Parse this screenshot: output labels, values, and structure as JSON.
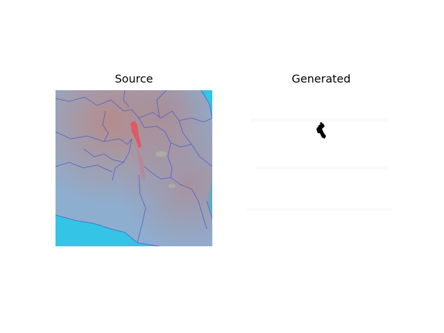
{
  "panels": {
    "source": {
      "title": "Source"
    },
    "generated": {
      "title": "Generated"
    }
  },
  "colors": {
    "background": "#ffffff",
    "sea": "#33c4e6",
    "land_base": "#8eaed0",
    "land_warm": "#b08a8e",
    "boundary": "#4f62c8",
    "plume_highlight": "#e8505c",
    "mask_background": "#ffffff",
    "mask_blob": "#000000"
  }
}
